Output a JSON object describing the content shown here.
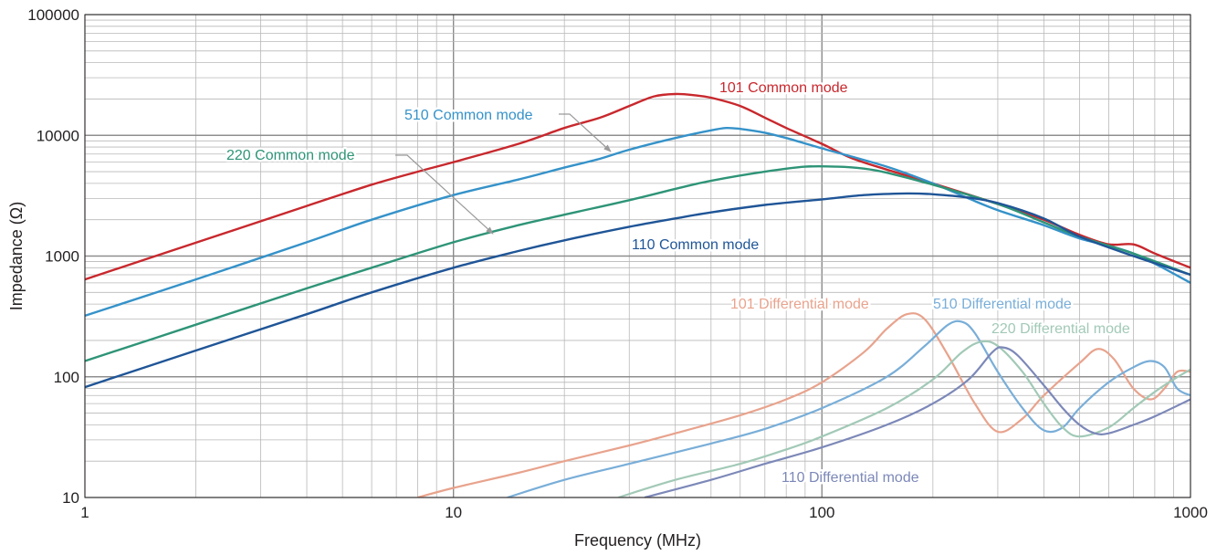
{
  "chart_data": {
    "type": "line",
    "title": "",
    "xlabel": "Frequency (MHz)",
    "ylabel": "Impedance (Ω)",
    "xscale": "log",
    "yscale": "log",
    "xlim": [
      1,
      1000
    ],
    "ylim": [
      10,
      100000
    ],
    "grid": true,
    "legend": "inline labels",
    "x_ticks": [
      "1",
      "10",
      "100",
      "1000"
    ],
    "y_ticks": [
      "10",
      "100",
      "1000",
      "10000",
      "100000"
    ],
    "series": [
      {
        "name": "101 Common mode",
        "color": "#c8282d",
        "points": [
          [
            1,
            640
          ],
          [
            2,
            1290
          ],
          [
            4,
            2600
          ],
          [
            6,
            3900
          ],
          [
            8,
            5000
          ],
          [
            10,
            6000
          ],
          [
            15,
            8500
          ],
          [
            20,
            11500
          ],
          [
            25,
            14000
          ],
          [
            30,
            17500
          ],
          [
            35,
            21000
          ],
          [
            40,
            22000
          ],
          [
            45,
            21500
          ],
          [
            50,
            20500
          ],
          [
            60,
            17500
          ],
          [
            70,
            14000
          ],
          [
            80,
            11500
          ],
          [
            100,
            8500
          ],
          [
            120,
            6500
          ],
          [
            150,
            5200
          ],
          [
            200,
            4000
          ],
          [
            300,
            2700
          ],
          [
            400,
            2000
          ],
          [
            500,
            1500
          ],
          [
            600,
            1250
          ],
          [
            700,
            1250
          ],
          [
            800,
            1050
          ],
          [
            1000,
            800
          ]
        ]
      },
      {
        "name": "510 Common mode",
        "color": "#3592c9",
        "points": [
          [
            1,
            320
          ],
          [
            2,
            640
          ],
          [
            4,
            1300
          ],
          [
            6,
            2000
          ],
          [
            10,
            3200
          ],
          [
            15,
            4300
          ],
          [
            20,
            5400
          ],
          [
            25,
            6400
          ],
          [
            30,
            7600
          ],
          [
            40,
            9500
          ],
          [
            50,
            11000
          ],
          [
            55,
            11500
          ],
          [
            60,
            11300
          ],
          [
            70,
            10500
          ],
          [
            80,
            9500
          ],
          [
            100,
            7800
          ],
          [
            150,
            5500
          ],
          [
            200,
            4000
          ],
          [
            250,
            3000
          ],
          [
            300,
            2400
          ],
          [
            400,
            1800
          ],
          [
            500,
            1400
          ],
          [
            700,
            1050
          ],
          [
            1000,
            600
          ]
        ]
      },
      {
        "name": "220 Common mode",
        "color": "#2e9477",
        "points": [
          [
            1,
            135
          ],
          [
            2,
            270
          ],
          [
            4,
            540
          ],
          [
            6,
            800
          ],
          [
            10,
            1300
          ],
          [
            15,
            1800
          ],
          [
            20,
            2200
          ],
          [
            30,
            2900
          ],
          [
            40,
            3600
          ],
          [
            50,
            4200
          ],
          [
            70,
            5000
          ],
          [
            90,
            5500
          ],
          [
            110,
            5500
          ],
          [
            130,
            5300
          ],
          [
            150,
            4900
          ],
          [
            200,
            3900
          ],
          [
            300,
            2700
          ],
          [
            400,
            1900
          ],
          [
            500,
            1450
          ],
          [
            700,
            1050
          ],
          [
            1000,
            700
          ]
        ]
      },
      {
        "name": "110 Common mode",
        "color": "#1f5597",
        "points": [
          [
            1,
            82
          ],
          [
            2,
            165
          ],
          [
            4,
            330
          ],
          [
            6,
            500
          ],
          [
            10,
            800
          ],
          [
            15,
            1100
          ],
          [
            20,
            1350
          ],
          [
            30,
            1750
          ],
          [
            40,
            2050
          ],
          [
            50,
            2300
          ],
          [
            70,
            2650
          ],
          [
            100,
            2950
          ],
          [
            130,
            3200
          ],
          [
            170,
            3300
          ],
          [
            200,
            3250
          ],
          [
            250,
            3050
          ],
          [
            300,
            2750
          ],
          [
            400,
            2050
          ],
          [
            500,
            1450
          ],
          [
            700,
            1000
          ],
          [
            1000,
            700
          ]
        ]
      },
      {
        "name": "101 Differential mode",
        "color": "#e8a38d",
        "points": [
          [
            8,
            10
          ],
          [
            10,
            12
          ],
          [
            15,
            16
          ],
          [
            20,
            20
          ],
          [
            30,
            27
          ],
          [
            40,
            34
          ],
          [
            60,
            48
          ],
          [
            80,
            65
          ],
          [
            100,
            90
          ],
          [
            130,
            160
          ],
          [
            150,
            250
          ],
          [
            170,
            330
          ],
          [
            190,
            300
          ],
          [
            220,
            150
          ],
          [
            260,
            60
          ],
          [
            300,
            35
          ],
          [
            350,
            45
          ],
          [
            400,
            70
          ],
          [
            500,
            130
          ],
          [
            560,
            170
          ],
          [
            620,
            140
          ],
          [
            700,
            80
          ],
          [
            780,
            65
          ],
          [
            850,
            80
          ],
          [
            920,
            110
          ],
          [
            1000,
            110
          ]
        ]
      },
      {
        "name": "510 Differential mode",
        "color": "#79aed8",
        "points": [
          [
            14,
            10
          ],
          [
            20,
            14
          ],
          [
            30,
            19
          ],
          [
            50,
            28
          ],
          [
            70,
            37
          ],
          [
            100,
            55
          ],
          [
            150,
            100
          ],
          [
            190,
            180
          ],
          [
            220,
            270
          ],
          [
            240,
            285
          ],
          [
            260,
            230
          ],
          [
            300,
            110
          ],
          [
            350,
            55
          ],
          [
            400,
            36
          ],
          [
            450,
            38
          ],
          [
            500,
            55
          ],
          [
            600,
            90
          ],
          [
            700,
            120
          ],
          [
            780,
            135
          ],
          [
            850,
            120
          ],
          [
            920,
            80
          ],
          [
            1000,
            70
          ]
        ]
      },
      {
        "name": "220  Differential mode",
        "color": "#a2c9b7",
        "points": [
          [
            28,
            10
          ],
          [
            40,
            14
          ],
          [
            60,
            19
          ],
          [
            80,
            25
          ],
          [
            100,
            32
          ],
          [
            150,
            55
          ],
          [
            200,
            95
          ],
          [
            240,
            160
          ],
          [
            270,
            195
          ],
          [
            300,
            180
          ],
          [
            350,
            110
          ],
          [
            400,
            60
          ],
          [
            450,
            38
          ],
          [
            500,
            32
          ],
          [
            600,
            38
          ],
          [
            700,
            55
          ],
          [
            800,
            75
          ],
          [
            900,
            95
          ],
          [
            1000,
            115
          ]
        ]
      },
      {
        "name": "110 Differential mode",
        "color": "#7c88b8",
        "points": [
          [
            33,
            10
          ],
          [
            50,
            14
          ],
          [
            70,
            19
          ],
          [
            100,
            26
          ],
          [
            150,
            40
          ],
          [
            200,
            60
          ],
          [
            250,
            95
          ],
          [
            290,
            160
          ],
          [
            310,
            175
          ],
          [
            340,
            150
          ],
          [
            400,
            85
          ],
          [
            450,
            55
          ],
          [
            500,
            40
          ],
          [
            550,
            34
          ],
          [
            600,
            34
          ],
          [
            700,
            40
          ],
          [
            800,
            47
          ],
          [
            1000,
            65
          ]
        ]
      }
    ],
    "annotations": [
      {
        "text": "101 Common mode",
        "color": "#c8282d"
      },
      {
        "text": "510 Common mode",
        "color": "#3592c9"
      },
      {
        "text": "220 Common mode",
        "color": "#2e9477"
      },
      {
        "text": "110 Common mode",
        "color": "#1f5597"
      },
      {
        "text": "101 Differential mode",
        "color": "#e8a38d"
      },
      {
        "text": "510 Differential mode",
        "color": "#79aed8"
      },
      {
        "text": "220  Differential mode",
        "color": "#a2c9b7"
      },
      {
        "text": "110 Differential mode",
        "color": "#7c88b8"
      }
    ]
  }
}
